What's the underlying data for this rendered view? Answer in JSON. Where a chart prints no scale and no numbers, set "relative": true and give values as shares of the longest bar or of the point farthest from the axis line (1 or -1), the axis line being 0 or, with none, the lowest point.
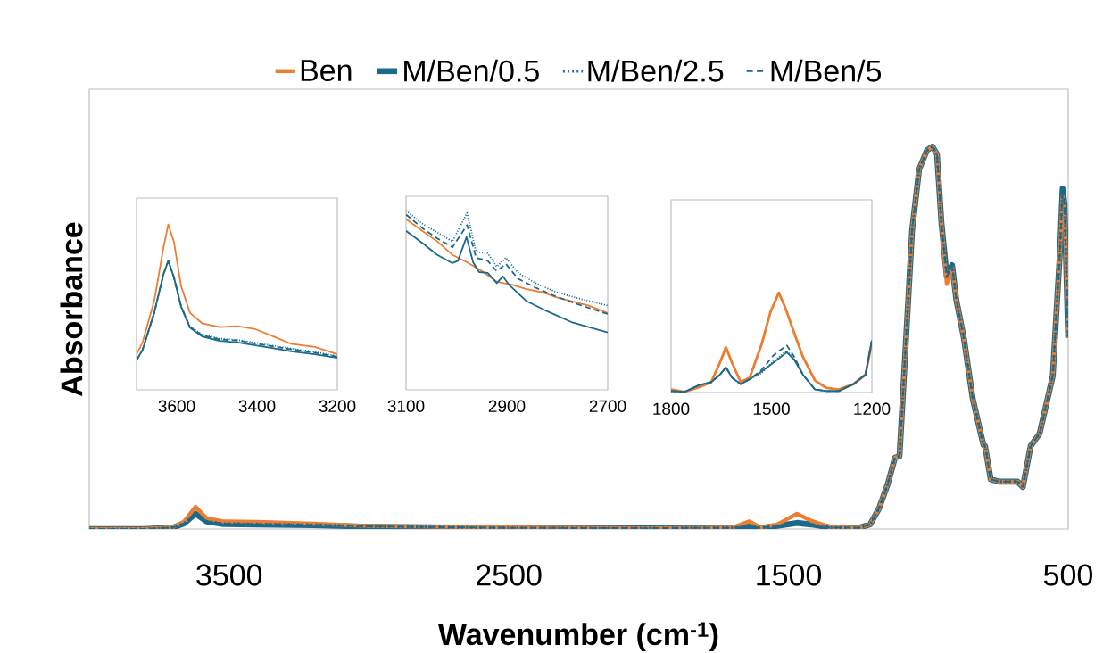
{
  "chart_data": [
    {
      "type": "line",
      "relative": true,
      "xlabel": "Wavenumber (cm$^{-1}$)",
      "ylabel": "Absorbance",
      "xlim": [
        4000,
        500
      ],
      "xticks": [
        3500,
        2500,
        1500,
        500
      ],
      "tick_labels": "x",
      "legend": "top",
      "series": [
        {
          "name": "Ben",
          "color": "#ed7d31",
          "line_style": "solid",
          "x": [
            4000,
            3800,
            3700,
            3660,
            3620,
            3580,
            3520,
            3400,
            3200,
            3000,
            2500,
            2000,
            1800,
            1700,
            1640,
            1600,
            1540,
            1470,
            1420,
            1350,
            1250,
            1208,
            1176,
            1144,
            1119,
            1103,
            1090,
            1074,
            1058,
            1033,
            1005,
            985,
            969,
            953,
            934,
            915,
            900,
            873,
            841,
            803,
            797,
            777,
            745,
            681,
            662,
            634,
            602,
            555,
            529,
            520,
            513,
            500
          ],
          "values": [
            0.0,
            0.0,
            0.005,
            0.02,
            0.058,
            0.028,
            0.02,
            0.019,
            0.014,
            0.008,
            0.004,
            0.002,
            0.003,
            0.004,
            0.02,
            0.004,
            0.012,
            0.04,
            0.022,
            0.005,
            0.003,
            0.012,
            0.054,
            0.12,
            0.187,
            0.19,
            0.36,
            0.57,
            0.78,
            0.94,
            0.99,
            1.0,
            0.98,
            0.8,
            0.64,
            0.685,
            0.6,
            0.5,
            0.34,
            0.22,
            0.217,
            0.13,
            0.124,
            0.124,
            0.11,
            0.217,
            0.25,
            0.4,
            0.73,
            0.87,
            0.84,
            0.5
          ]
        },
        {
          "name": "M/Ben/0.5",
          "color": "#1b6a8c",
          "line_style": "solid",
          "x": [
            4000,
            3800,
            3700,
            3660,
            3620,
            3580,
            3520,
            3400,
            3200,
            3000,
            2500,
            2000,
            1800,
            1700,
            1640,
            1600,
            1540,
            1470,
            1420,
            1350,
            1250,
            1208,
            1176,
            1144,
            1119,
            1103,
            1090,
            1074,
            1058,
            1033,
            1005,
            985,
            969,
            953,
            934,
            915,
            900,
            873,
            841,
            803,
            797,
            777,
            745,
            681,
            662,
            634,
            602,
            555,
            529,
            520,
            513,
            500
          ],
          "values": [
            0.0,
            0.0,
            0.004,
            0.015,
            0.04,
            0.02,
            0.013,
            0.012,
            0.01,
            0.006,
            0.003,
            0.002,
            0.003,
            0.003,
            0.008,
            0.003,
            0.008,
            0.016,
            0.012,
            0.004,
            0.003,
            0.012,
            0.054,
            0.12,
            0.187,
            0.19,
            0.36,
            0.57,
            0.78,
            0.94,
            0.99,
            1.0,
            0.98,
            0.8,
            0.66,
            0.69,
            0.6,
            0.5,
            0.34,
            0.22,
            0.217,
            0.13,
            0.124,
            0.124,
            0.11,
            0.217,
            0.25,
            0.4,
            0.73,
            0.89,
            0.85,
            0.5
          ]
        },
        {
          "name": "M/Ben/2.5",
          "color": "#1b6a8c",
          "line_style": "dotted",
          "x": [
            4000,
            3800,
            3700,
            3660,
            3620,
            3580,
            3520,
            3400,
            3200,
            3000,
            2500,
            2000,
            1800,
            1700,
            1640,
            1600,
            1540,
            1470,
            1420,
            1350,
            1250,
            1208,
            1176,
            1144,
            1119,
            1103,
            1090,
            1074,
            1058,
            1033,
            1005,
            985,
            969,
            953,
            934,
            915,
            900,
            873,
            841,
            803,
            797,
            777,
            745,
            681,
            662,
            634,
            602,
            555,
            529,
            520,
            513,
            500
          ],
          "values": [
            0.0,
            0.0,
            0.004,
            0.015,
            0.04,
            0.02,
            0.014,
            0.013,
            0.011,
            0.007,
            0.003,
            0.002,
            0.003,
            0.003,
            0.008,
            0.003,
            0.008,
            0.017,
            0.012,
            0.004,
            0.003,
            0.012,
            0.054,
            0.12,
            0.187,
            0.19,
            0.36,
            0.57,
            0.78,
            0.94,
            0.99,
            1.0,
            0.98,
            0.8,
            0.66,
            0.69,
            0.6,
            0.5,
            0.34,
            0.22,
            0.217,
            0.13,
            0.124,
            0.124,
            0.11,
            0.217,
            0.25,
            0.4,
            0.73,
            0.89,
            0.85,
            0.5
          ]
        },
        {
          "name": "M/Ben/5",
          "color": "#1b6a8c",
          "line_style": "dashed",
          "x": [
            4000,
            3800,
            3700,
            3660,
            3620,
            3580,
            3520,
            3400,
            3200,
            3000,
            2500,
            2000,
            1800,
            1700,
            1640,
            1600,
            1540,
            1470,
            1420,
            1350,
            1250,
            1208,
            1176,
            1144,
            1119,
            1103,
            1090,
            1074,
            1058,
            1033,
            1005,
            985,
            969,
            953,
            934,
            915,
            900,
            873,
            841,
            803,
            797,
            777,
            745,
            681,
            662,
            634,
            602,
            555,
            529,
            520,
            513,
            500
          ],
          "values": [
            0.0,
            0.0,
            0.004,
            0.015,
            0.04,
            0.02,
            0.014,
            0.013,
            0.011,
            0.007,
            0.003,
            0.002,
            0.003,
            0.003,
            0.008,
            0.003,
            0.008,
            0.018,
            0.012,
            0.004,
            0.003,
            0.012,
            0.054,
            0.12,
            0.187,
            0.19,
            0.36,
            0.57,
            0.78,
            0.94,
            0.99,
            1.0,
            0.98,
            0.8,
            0.66,
            0.69,
            0.6,
            0.5,
            0.34,
            0.22,
            0.217,
            0.13,
            0.124,
            0.124,
            0.11,
            0.217,
            0.25,
            0.4,
            0.73,
            0.89,
            0.85,
            0.5
          ]
        }
      ]
    },
    {
      "type": "line",
      "relative": true,
      "xlim": [
        3700,
        3200
      ],
      "xticks": [
        3600,
        3400,
        3200
      ],
      "tick_labels": "x",
      "series": [
        {
          "color": "#ed7d31",
          "line_style": "solid",
          "x": [
            3700,
            3685,
            3656,
            3633,
            3621,
            3607,
            3589,
            3567,
            3537,
            3493,
            3448,
            3404,
            3359,
            3315,
            3256,
            3200
          ],
          "values": [
            0.215,
            0.287,
            0.538,
            0.86,
            1.0,
            0.896,
            0.627,
            0.466,
            0.403,
            0.38,
            0.385,
            0.367,
            0.323,
            0.278,
            0.26,
            0.215
          ]
        },
        {
          "color": "#1b6a8c",
          "line_style": "solid",
          "x": [
            3700,
            3685,
            3656,
            3633,
            3621,
            3607,
            3589,
            3567,
            3537,
            3493,
            3448,
            3404,
            3359,
            3315,
            3256,
            3200
          ],
          "values": [
            0.179,
            0.242,
            0.466,
            0.699,
            0.78,
            0.681,
            0.502,
            0.376,
            0.323,
            0.296,
            0.287,
            0.269,
            0.251,
            0.233,
            0.215,
            0.194
          ]
        },
        {
          "color": "#1b6a8c",
          "line_style": "dotted",
          "x": [
            3700,
            3685,
            3656,
            3633,
            3621,
            3607,
            3589,
            3567,
            3537,
            3493,
            3448,
            3404,
            3359,
            3315,
            3256,
            3200
          ],
          "values": [
            0.179,
            0.242,
            0.466,
            0.699,
            0.78,
            0.681,
            0.505,
            0.384,
            0.335,
            0.31,
            0.302,
            0.285,
            0.267,
            0.25,
            0.23,
            0.205
          ]
        },
        {
          "color": "#1b6a8c",
          "line_style": "dashed",
          "x": [
            3700,
            3685,
            3656,
            3633,
            3621,
            3607,
            3589,
            3567,
            3537,
            3493,
            3448,
            3404,
            3359,
            3315,
            3256,
            3200
          ],
          "values": [
            0.179,
            0.242,
            0.466,
            0.699,
            0.78,
            0.681,
            0.505,
            0.38,
            0.33,
            0.305,
            0.298,
            0.28,
            0.262,
            0.245,
            0.225,
            0.2
          ]
        }
      ]
    },
    {
      "type": "line",
      "relative": true,
      "xlim": [
        3100,
        2700
      ],
      "xticks": [
        3100,
        2900,
        2700
      ],
      "tick_labels": "x",
      "series": [
        {
          "color": "#ed7d31",
          "line_style": "solid",
          "x": [
            3100,
            3068,
            3038,
            3008,
            2979,
            2949,
            2920,
            2890,
            2861,
            2831,
            2802,
            2772,
            2737,
            2700
          ],
          "values": [
            0.953,
            0.887,
            0.828,
            0.753,
            0.712,
            0.662,
            0.603,
            0.587,
            0.562,
            0.545,
            0.517,
            0.495,
            0.47,
            0.428
          ]
        },
        {
          "color": "#1b6a8c",
          "line_style": "solid",
          "x": [
            3100,
            3068,
            3038,
            3008,
            2997,
            2980,
            2967,
            2955,
            2938,
            2920,
            2908,
            2896,
            2861,
            2819,
            2772,
            2700
          ],
          "values": [
            0.887,
            0.82,
            0.753,
            0.707,
            0.72,
            0.853,
            0.712,
            0.657,
            0.653,
            0.595,
            0.633,
            0.587,
            0.495,
            0.437,
            0.378,
            0.32
          ]
        },
        {
          "color": "#1b6a8c",
          "line_style": "dotted",
          "x": [
            3100,
            3068,
            3038,
            3008,
            2979,
            2961,
            2938,
            2920,
            2902,
            2878,
            2843,
            2802,
            2760,
            2700
          ],
          "values": [
            1.0,
            0.928,
            0.878,
            0.828,
            0.987,
            0.77,
            0.762,
            0.687,
            0.737,
            0.653,
            0.595,
            0.545,
            0.512,
            0.47
          ]
        },
        {
          "color": "#1b6a8c",
          "line_style": "dashed",
          "x": [
            3100,
            3068,
            3038,
            3008,
            2979,
            2961,
            2938,
            2920,
            2902,
            2878,
            2843,
            2802,
            2760,
            2700
          ],
          "values": [
            0.978,
            0.903,
            0.845,
            0.795,
            0.92,
            0.737,
            0.72,
            0.662,
            0.703,
            0.62,
            0.57,
            0.52,
            0.478,
            0.423
          ]
        }
      ]
    },
    {
      "type": "line",
      "relative": true,
      "xlim": [
        1800,
        1200
      ],
      "xticks": [
        1800,
        1500,
        1200
      ],
      "tick_labels": "x",
      "series": [
        {
          "color": "#ed7d31",
          "line_style": "solid",
          "x": [
            1800,
            1760,
            1716,
            1680,
            1654,
            1636,
            1618,
            1592,
            1565,
            1530,
            1503,
            1478,
            1459,
            1432,
            1406,
            1370,
            1335,
            1299,
            1255,
            1219,
            1200
          ],
          "values": [
            0.03,
            0.006,
            0.054,
            0.104,
            0.299,
            0.454,
            0.299,
            0.104,
            0.149,
            0.478,
            0.806,
            1.0,
            0.851,
            0.597,
            0.358,
            0.119,
            0.045,
            0.03,
            0.084,
            0.179,
            0.507
          ]
        },
        {
          "color": "#1b6a8c",
          "line_style": "solid",
          "x": [
            1800,
            1760,
            1716,
            1680,
            1654,
            1636,
            1618,
            1592,
            1565,
            1530,
            1494,
            1454,
            1432,
            1406,
            1370,
            1335,
            1299,
            1255,
            1219,
            1200
          ],
          "values": [
            0.015,
            0.006,
            0.075,
            0.104,
            0.179,
            0.254,
            0.149,
            0.084,
            0.134,
            0.209,
            0.299,
            0.403,
            0.328,
            0.179,
            0.03,
            0.015,
            0.015,
            0.084,
            0.179,
            0.522
          ]
        },
        {
          "color": "#1b6a8c",
          "line_style": "dotted",
          "x": [
            1800,
            1760,
            1716,
            1680,
            1654,
            1636,
            1618,
            1592,
            1565,
            1530,
            1494,
            1454,
            1432,
            1406,
            1370,
            1335,
            1299,
            1255,
            1219,
            1200
          ],
          "values": [
            0.015,
            0.006,
            0.075,
            0.104,
            0.179,
            0.254,
            0.149,
            0.084,
            0.134,
            0.194,
            0.313,
            0.418,
            0.334,
            0.179,
            0.03,
            0.015,
            0.015,
            0.084,
            0.179,
            0.522
          ]
        },
        {
          "color": "#1b6a8c",
          "line_style": "dashed",
          "x": [
            1800,
            1760,
            1716,
            1680,
            1654,
            1636,
            1618,
            1592,
            1565,
            1530,
            1494,
            1454,
            1432,
            1406,
            1370,
            1335,
            1299,
            1255,
            1219,
            1200
          ],
          "values": [
            0.015,
            0.006,
            0.075,
            0.104,
            0.179,
            0.254,
            0.149,
            0.084,
            0.134,
            0.224,
            0.373,
            0.472,
            0.358,
            0.179,
            0.03,
            0.015,
            0.015,
            0.084,
            0.179,
            0.522
          ]
        }
      ]
    }
  ]
}
